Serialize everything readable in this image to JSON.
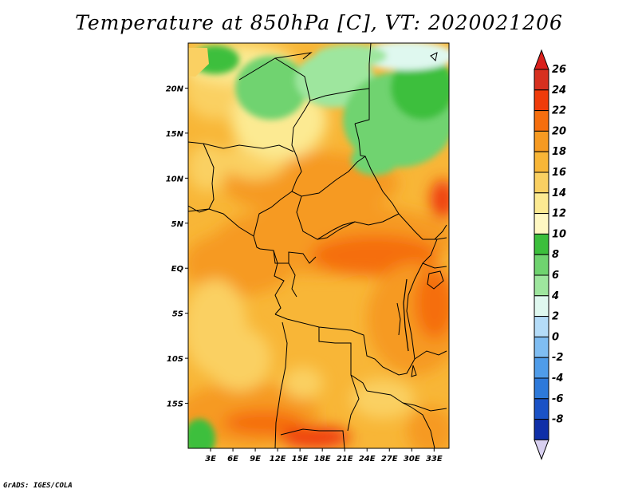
{
  "title": "Temperature at 850hPa [C], VT: 2020021206",
  "credit": "GrADS: IGES/COLA",
  "map": {
    "lon_range": [
      0,
      35
    ],
    "lat_range": [
      -20,
      25
    ],
    "lat_ticks": [
      {
        "lat": 20,
        "label": "20N"
      },
      {
        "lat": 15,
        "label": "15N"
      },
      {
        "lat": 10,
        "label": "10N"
      },
      {
        "lat": 5,
        "label": "5N"
      },
      {
        "lat": 0,
        "label": "EQ"
      },
      {
        "lat": -5,
        "label": "5S"
      },
      {
        "lat": -10,
        "label": "10S"
      },
      {
        "lat": -15,
        "label": "15S"
      }
    ],
    "lon_ticks": [
      {
        "lon": 3,
        "label": "3E"
      },
      {
        "lon": 6,
        "label": "6E"
      },
      {
        "lon": 9,
        "label": "9E"
      },
      {
        "lon": 12,
        "label": "12E"
      },
      {
        "lon": 15,
        "label": "15E"
      },
      {
        "lon": 18,
        "label": "18E"
      },
      {
        "lon": 21,
        "label": "21E"
      },
      {
        "lon": 24,
        "label": "24E"
      },
      {
        "lon": 27,
        "label": "27E"
      },
      {
        "lon": 30,
        "label": "30E"
      },
      {
        "lon": 33,
        "label": "33E"
      }
    ]
  },
  "colorbar": {
    "levels": [
      {
        "label": "26",
        "color": "#d7301f"
      },
      {
        "label": "24",
        "color": "#ef3b0a"
      },
      {
        "label": "22",
        "color": "#f56e0e"
      },
      {
        "label": "20",
        "color": "#f69a21"
      },
      {
        "label": "18",
        "color": "#f8b637"
      },
      {
        "label": "16",
        "color": "#fad062"
      },
      {
        "label": "14",
        "color": "#fcea92"
      },
      {
        "label": "12",
        "color": "#fff8c2"
      },
      {
        "label": "10",
        "color": "#3cbf3c"
      },
      {
        "label": "8",
        "color": "#6fd36f"
      },
      {
        "label": "6",
        "color": "#9ee69e"
      },
      {
        "label": "4",
        "color": "#dff8ef"
      },
      {
        "label": "2",
        "color": "#b4dcf8"
      },
      {
        "label": "0",
        "color": "#7fbdf2"
      },
      {
        "label": "-2",
        "color": "#4f9ce9"
      },
      {
        "label": "-4",
        "color": "#2d79da"
      },
      {
        "label": "-6",
        "color": "#1a52c6"
      },
      {
        "label": "-8",
        "color": "#0f2fa8"
      }
    ],
    "top_arrow_color": "#d9201c",
    "bottom_arrow_color": "#0a1a7a",
    "under_color": "#d8d0f0"
  }
}
